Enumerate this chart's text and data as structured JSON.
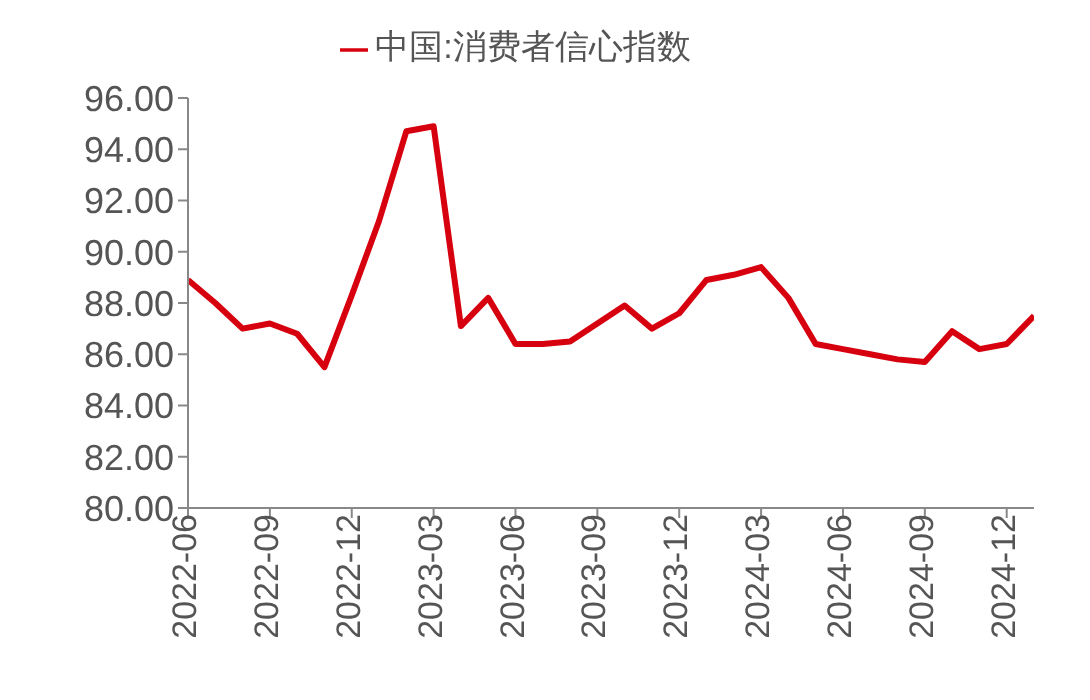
{
  "chart_data": {
    "type": "line",
    "x": [
      "2022-06",
      "2022-07",
      "2022-08",
      "2022-09",
      "2022-10",
      "2022-11",
      "2022-12",
      "2023-01",
      "2023-02",
      "2023-03",
      "2023-04",
      "2023-05",
      "2023-06",
      "2023-07",
      "2023-08",
      "2023-09",
      "2023-10",
      "2023-11",
      "2023-12",
      "2024-01",
      "2024-02",
      "2024-03",
      "2024-04",
      "2024-05",
      "2024-06",
      "2024-07",
      "2024-08",
      "2024-09",
      "2024-10",
      "2024-11",
      "2024-12",
      "2025-01"
    ],
    "series": [
      {
        "name": "中国:消费者信心指数",
        "color": "#d7000f",
        "values": [
          88.9,
          88.0,
          87.0,
          87.2,
          86.8,
          85.5,
          88.3,
          91.2,
          94.7,
          94.9,
          87.1,
          88.2,
          86.4,
          86.4,
          86.5,
          87.2,
          87.9,
          87.0,
          87.6,
          88.9,
          89.1,
          89.4,
          88.2,
          86.4,
          86.2,
          86.0,
          85.8,
          85.7,
          86.9,
          86.2,
          86.4,
          87.5
        ]
      }
    ],
    "xlim": [
      "2022-06",
      "2025-01"
    ],
    "xticks": [
      "2022-06",
      "2022-09",
      "2022-12",
      "2023-03",
      "2023-06",
      "2023-09",
      "2023-12",
      "2024-03",
      "2024-06",
      "2024-09",
      "2024-12"
    ],
    "ylim": [
      80,
      96
    ],
    "yticks": [
      {
        "value": 80,
        "label": "80.00"
      },
      {
        "value": 82,
        "label": "82.00"
      },
      {
        "value": 84,
        "label": "84.00"
      },
      {
        "value": 86,
        "label": "86.00"
      },
      {
        "value": 88,
        "label": "88.00"
      },
      {
        "value": 90,
        "label": "90.00"
      },
      {
        "value": 92,
        "label": "92.00"
      },
      {
        "value": 94,
        "label": "94.00"
      },
      {
        "value": 96,
        "label": "96.00"
      }
    ],
    "grid": false,
    "legend": "top",
    "marker": "none",
    "line_style": "solid"
  }
}
